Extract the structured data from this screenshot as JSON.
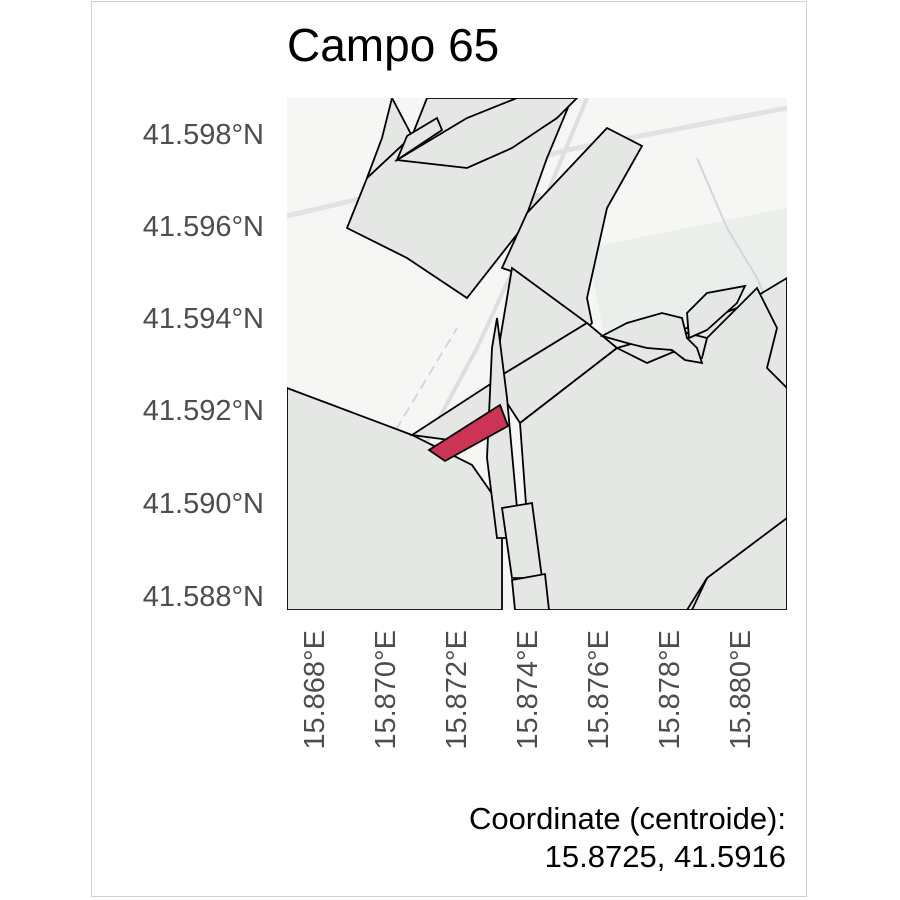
{
  "title": "Campo 65",
  "latitude_ticks": [
    "41.598°N",
    "41.596°N",
    "41.594°N",
    "41.592°N",
    "41.590°N",
    "41.588°N"
  ],
  "longitude_ticks": [
    "15.868°E",
    "15.870°E",
    "15.872°E",
    "15.874°E",
    "15.876°E",
    "15.878°E",
    "15.880°E"
  ],
  "caption": {
    "label": "Coordinate (centroide):",
    "value": "15.8725, 41.5916"
  },
  "colors": {
    "highlight_field": "#cc3355",
    "field_fill": "#e4e7e4",
    "basemap": "#f6f6f4",
    "outline": "#000000"
  }
}
